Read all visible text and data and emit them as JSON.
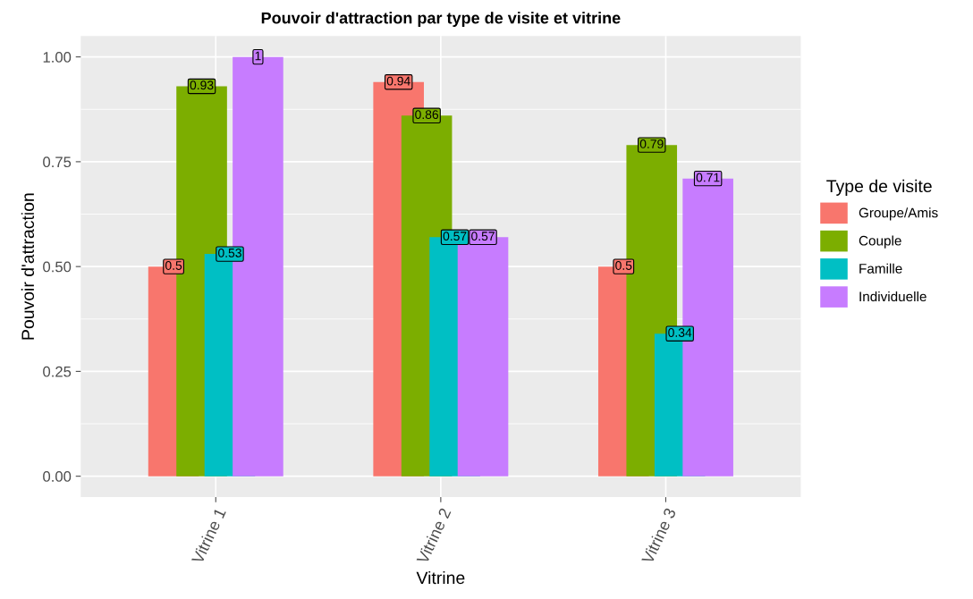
{
  "chart_data": {
    "type": "bar",
    "title": "Pouvoir d'attraction par type de visite et vitrine",
    "xlabel": "Vitrine",
    "ylabel": "Pouvoir d'attraction",
    "legend_title": "Type de visite",
    "categories": [
      "Vitrine 1",
      "Vitrine 2",
      "Vitrine 3"
    ],
    "series": [
      {
        "name": "Groupe/Amis",
        "color": "#f8766d",
        "values": [
          0.5,
          0.94,
          0.5
        ]
      },
      {
        "name": "Couple",
        "color": "#7cae00",
        "values": [
          0.93,
          0.86,
          0.79
        ]
      },
      {
        "name": "Famille",
        "color": "#00bfc4",
        "values": [
          0.53,
          0.57,
          0.34
        ]
      },
      {
        "name": "Individuelle",
        "color": "#c77cff",
        "values": [
          1,
          0.57,
          0.71
        ]
      }
    ],
    "ylim": [
      -0.05,
      1.05
    ],
    "yticks": [
      {
        "value": 0,
        "label": "0.00"
      },
      {
        "value": 0.25,
        "label": "0.25"
      },
      {
        "value": 0.5,
        "label": "0.50"
      },
      {
        "value": 0.75,
        "label": "0.75"
      },
      {
        "value": 1,
        "label": "1.00"
      }
    ],
    "grid": true,
    "legend": "right",
    "data_labels": true
  }
}
